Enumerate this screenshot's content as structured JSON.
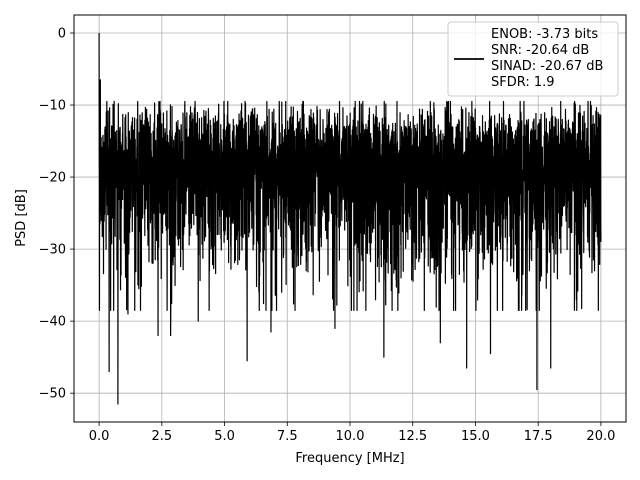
{
  "chart_data": {
    "type": "line",
    "title": "",
    "xlabel": "Frequency [MHz]",
    "ylabel": "PSD [dB]",
    "xlim": [
      -1.0,
      21.0
    ],
    "ylim": [
      -54.0,
      2.5
    ],
    "xticks": [
      0.0,
      2.5,
      5.0,
      7.5,
      10.0,
      12.5,
      15.0,
      17.5,
      20.0
    ],
    "xtick_labels": [
      "0.0",
      "2.5",
      "5.0",
      "7.5",
      "10.0",
      "12.5",
      "15.0",
      "17.5",
      "20.0"
    ],
    "yticks": [
      0,
      -10,
      -20,
      -30,
      -40,
      -50
    ],
    "ytick_labels": [
      "0",
      "−10",
      "−20",
      "−30",
      "−40",
      "−50"
    ],
    "grid": true,
    "line_color": "#000000",
    "legend": {
      "location": "top-right",
      "entries": [
        "ENOB: -3.73 bits",
        "SNR: -20.64 dB",
        "SINAD: -20.67 dB",
        "SFDR: 1.9"
      ]
    },
    "series": [
      {
        "x_range": [
          0.0,
          20.0
        ],
        "num_points": 4096,
        "noise_floor_center_db": -20.5,
        "peak": {
          "x": 0.0,
          "y": 0.0
        },
        "notable_points": [
          {
            "x": 0.0,
            "y": 0.0
          },
          {
            "x": 0.05,
            "y": -6.5
          },
          {
            "x": 0.08,
            "y": -14.5
          },
          {
            "x": 0.1,
            "y": -23.5
          },
          {
            "x": 0.4,
            "y": -47.0
          },
          {
            "x": 0.75,
            "y": -51.5
          },
          {
            "x": 1.15,
            "y": -39.0
          },
          {
            "x": 2.35,
            "y": -42.0
          },
          {
            "x": 2.85,
            "y": -42.0
          },
          {
            "x": 3.95,
            "y": -40.0
          },
          {
            "x": 5.9,
            "y": -45.5
          },
          {
            "x": 6.85,
            "y": -41.5
          },
          {
            "x": 9.4,
            "y": -41.0
          },
          {
            "x": 11.35,
            "y": -45.0
          },
          {
            "x": 13.6,
            "y": -43.0
          },
          {
            "x": 14.65,
            "y": -46.5
          },
          {
            "x": 15.6,
            "y": -44.5
          },
          {
            "x": 17.45,
            "y": -49.5
          },
          {
            "x": 18.0,
            "y": -46.5
          },
          {
            "x": 20.0,
            "y": -29.0
          }
        ]
      }
    ]
  }
}
